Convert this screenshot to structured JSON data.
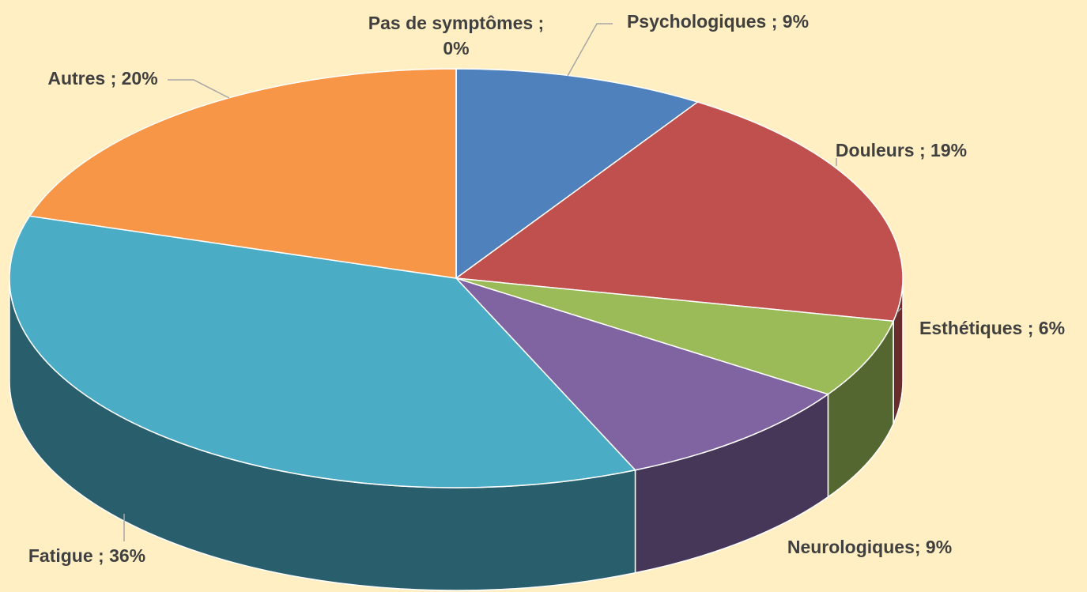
{
  "chart_data": {
    "type": "pie3d",
    "values": [
      9,
      19,
      6,
      9,
      36,
      20,
      0
    ],
    "value_labels": [
      "Psychologiques ; 9%",
      "Douleurs ; 19%",
      "Esthétiques ; 6%",
      "Neurologiques; 9%",
      "Fatigue ; 36%",
      "Autres ; 20%",
      "Pas de symptômes ; 0%"
    ],
    "colors": [
      "#4f81bd",
      "#c0504d",
      "#9bbb59",
      "#8064a2",
      "#4bacc6",
      "#f79646",
      "#a5a5a5"
    ]
  }
}
